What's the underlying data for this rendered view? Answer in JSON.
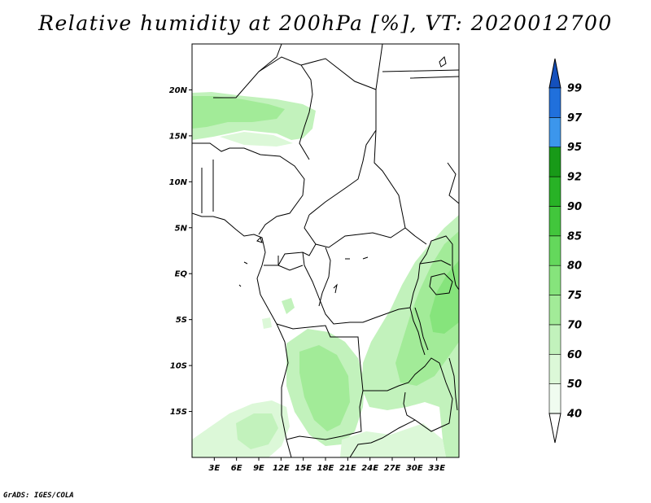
{
  "title": "Relative humidity at 200hPa [%], VT: 2020012700",
  "credit": "GrADS: IGES/COLA",
  "map": {
    "lon_range": [
      0,
      36
    ],
    "lat_range": [
      -20,
      25
    ],
    "lat_ticks": [
      {
        "value": 20,
        "label": "20N"
      },
      {
        "value": 15,
        "label": "15N"
      },
      {
        "value": 10,
        "label": "10N"
      },
      {
        "value": 5,
        "label": "5N"
      },
      {
        "value": 0,
        "label": "EQ"
      },
      {
        "value": -5,
        "label": "5S"
      },
      {
        "value": -10,
        "label": "10S"
      },
      {
        "value": -15,
        "label": "15S"
      }
    ],
    "lon_ticks": [
      {
        "value": 3,
        "label": "3E"
      },
      {
        "value": 6,
        "label": "6E"
      },
      {
        "value": 9,
        "label": "9E"
      },
      {
        "value": 12,
        "label": "12E"
      },
      {
        "value": 15,
        "label": "15E"
      },
      {
        "value": 18,
        "label": "18E"
      },
      {
        "value": 21,
        "label": "21E"
      },
      {
        "value": 24,
        "label": "24E"
      },
      {
        "value": 27,
        "label": "27E"
      },
      {
        "value": 30,
        "label": "30E"
      },
      {
        "value": 33,
        "label": "33E"
      }
    ]
  },
  "colorbar": {
    "levels": [
      {
        "label": "40",
        "color": "#f0fcf0"
      },
      {
        "label": "50",
        "color": "#dcf8d8"
      },
      {
        "label": "60",
        "color": "#c2f2bc"
      },
      {
        "label": "70",
        "color": "#a2eb98"
      },
      {
        "label": "75",
        "color": "#86e47c"
      },
      {
        "label": "80",
        "color": "#64d85c"
      },
      {
        "label": "85",
        "color": "#42c63c"
      },
      {
        "label": "90",
        "color": "#28b226"
      },
      {
        "label": "92",
        "color": "#189a18"
      },
      {
        "label": "95",
        "color": "#3c96ec"
      },
      {
        "label": "97",
        "color": "#2070dc"
      },
      {
        "label": "99",
        "color": "#1450bc"
      }
    ]
  }
}
